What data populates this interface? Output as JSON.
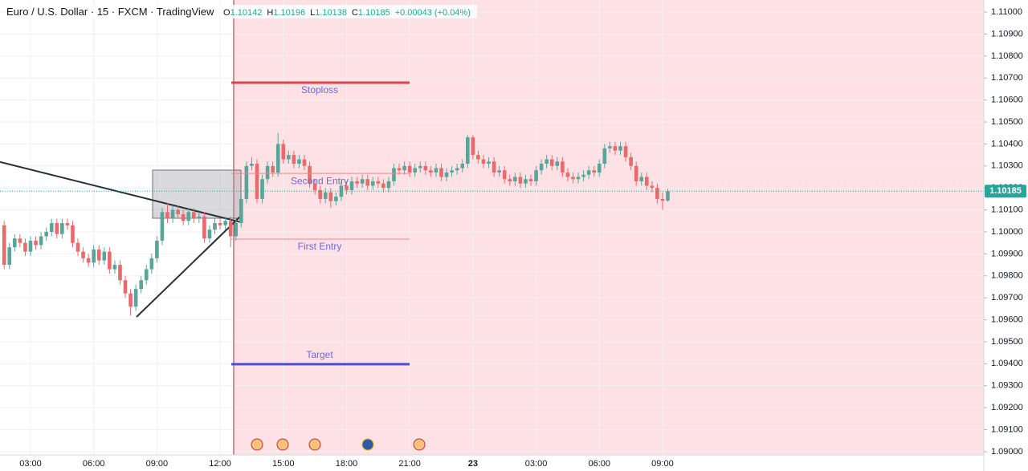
{
  "chart_data": {
    "type": "candlestick",
    "title": "Euro / U.S. Dollar · 15 · FXCM · TradingView",
    "ohlc_labels": [
      "O",
      "H",
      "L",
      "C"
    ],
    "change_label": "+0.00043 (+0.04%)",
    "up_color": "#5ba49a",
    "down_color": "#e86a6a",
    "categories": [
      null,
      null,
      null,
      null,
      null,
      "03:00",
      null,
      null,
      null,
      null,
      null,
      null,
      null,
      null,
      null,
      null,
      null,
      "06:00",
      null,
      null,
      null,
      null,
      null,
      null,
      null,
      null,
      null,
      null,
      null,
      "09:00",
      null,
      null,
      null,
      null,
      null,
      null,
      null,
      null,
      null,
      null,
      null,
      "12:00",
      null,
      null,
      null,
      null,
      null,
      null,
      null,
      null,
      null,
      null,
      null,
      "15:00",
      null,
      null,
      null,
      null,
      null,
      null,
      null,
      null,
      null,
      null,
      null,
      "18:00",
      null,
      null,
      null,
      null,
      null,
      null,
      null,
      null,
      null,
      null,
      null,
      "21:00",
      null,
      null,
      null,
      null,
      null,
      null,
      null,
      null,
      null,
      null,
      null,
      "23",
      null,
      null,
      null,
      null,
      null,
      null,
      null,
      null,
      null,
      null,
      null,
      "03:00",
      null,
      null,
      null,
      null,
      null,
      null,
      null,
      null,
      null,
      null,
      null,
      "06:00",
      null,
      null,
      null,
      null,
      null,
      null,
      null,
      null,
      null,
      null,
      null,
      "09:00",
      null
    ],
    "open": [
      1.1003,
      1.0985,
      1.0993,
      1.0997,
      1.0995,
      1.0991,
      1.0996,
      1.0994,
      1.0998,
      1.1,
      1.1004,
      1.0999,
      1.1004,
      1.1003,
      1.0995,
      1.0991,
      1.0988,
      1.0986,
      1.0992,
      1.0987,
      1.0991,
      1.0983,
      1.0985,
      1.0978,
      1.0972,
      1.0966,
      1.0974,
      1.0978,
      1.0983,
      1.0988,
      1.0996,
      1.1009,
      1.1006,
      1.101,
      1.1008,
      1.1005,
      1.1009,
      1.1006,
      1.1007,
      1.0997,
      1.1001,
      1.1004,
      1.1003,
      1.1005,
      1.0998,
      1.1004,
      1.1015,
      1.103,
      1.1031,
      1.1015,
      1.1024,
      1.103,
      1.1027,
      1.104,
      1.1033,
      1.1035,
      1.1031,
      1.1033,
      1.103,
      1.1022,
      1.1019,
      1.1015,
      1.1018,
      1.1014,
      1.1016,
      1.1021,
      1.1019,
      1.1023,
      1.1022,
      1.1024,
      1.1021,
      1.1023,
      1.1022,
      1.102,
      1.1023,
      1.1029,
      1.1028,
      1.103,
      1.1027,
      1.1029,
      1.103,
      1.1028,
      1.1027,
      1.1029,
      1.1025,
      1.1027,
      1.1028,
      1.1029,
      1.1031,
      1.1043,
      1.1035,
      1.1033,
      1.1031,
      1.1032,
      1.1027,
      1.1028,
      1.1024,
      1.1023,
      1.1025,
      1.1022,
      1.1024,
      1.1023,
      1.1028,
      1.1031,
      1.1033,
      1.103,
      1.1032,
      1.1027,
      1.1025,
      1.1024,
      1.1025,
      1.1026,
      1.1028,
      1.1027,
      1.1031,
      1.1038,
      1.1039,
      1.1037,
      1.1039,
      1.1034,
      1.103,
      1.1023,
      1.1025,
      1.1021,
      1.102,
      1.1015,
      1.10142
    ],
    "high": [
      1.1005,
      1.0995,
      1.0999,
      1.0999,
      1.0997,
      1.0998,
      1.0998,
      1.1,
      1.1002,
      1.1006,
      1.1006,
      1.1006,
      1.1006,
      1.1005,
      1.0997,
      1.0993,
      1.099,
      1.0994,
      1.0994,
      1.0993,
      1.0993,
      1.0987,
      1.0987,
      1.098,
      1.0974,
      1.0976,
      1.098,
      1.0985,
      1.099,
      1.0998,
      1.1011,
      1.1013,
      1.1012,
      1.1012,
      1.101,
      1.1011,
      1.1011,
      1.1009,
      1.1009,
      1.1003,
      1.1006,
      1.1006,
      1.1007,
      1.1007,
      1.1006,
      1.1017,
      1.1032,
      1.1034,
      1.1033,
      1.1026,
      1.1032,
      1.1032,
      1.1045,
      1.1042,
      1.1037,
      1.1037,
      1.1035,
      1.1035,
      1.1032,
      1.1024,
      1.1021,
      1.102,
      1.102,
      1.1018,
      1.1023,
      1.1023,
      1.1025,
      1.1025,
      1.1026,
      1.1026,
      1.1025,
      1.1025,
      1.1024,
      1.1025,
      1.1031,
      1.1031,
      1.1032,
      1.1032,
      1.1031,
      1.1032,
      1.1032,
      1.103,
      1.1031,
      1.1031,
      1.1029,
      1.103,
      1.1031,
      1.1033,
      1.1044,
      1.1044,
      1.1037,
      1.1035,
      1.1034,
      1.1034,
      1.103,
      1.103,
      1.1026,
      1.1027,
      1.1027,
      1.1026,
      1.1026,
      1.103,
      1.1033,
      1.1035,
      1.1035,
      1.1034,
      1.1034,
      1.1029,
      1.1027,
      1.1027,
      1.1028,
      1.103,
      1.103,
      1.1033,
      1.104,
      1.1041,
      1.1041,
      1.1041,
      1.1041,
      1.1036,
      1.1032,
      1.1027,
      1.1027,
      1.1023,
      1.1022,
      1.1018,
      1.10196
    ],
    "low": [
      1.0983,
      1.0983,
      1.0991,
      1.0993,
      1.0989,
      1.0989,
      1.0992,
      1.0992,
      1.0996,
      1.0998,
      1.0997,
      1.0997,
      1.1001,
      1.0993,
      1.0989,
      1.0986,
      1.0984,
      1.0984,
      1.0985,
      1.0985,
      1.0981,
      1.0981,
      1.0976,
      1.097,
      1.0962,
      1.0964,
      1.0972,
      1.0976,
      1.0981,
      1.0986,
      1.0994,
      1.1004,
      1.1004,
      1.1006,
      1.1003,
      1.1003,
      1.1004,
      1.1004,
      1.0995,
      1.0995,
      1.0999,
      1.1001,
      1.1001,
      1.0993,
      1.0996,
      1.1002,
      1.1013,
      1.1028,
      1.1013,
      1.1013,
      1.1022,
      1.1025,
      1.1025,
      1.1031,
      1.1031,
      1.1029,
      1.1029,
      1.1028,
      1.102,
      1.1017,
      1.1013,
      1.1013,
      1.1011,
      1.1012,
      1.1014,
      1.1017,
      1.1017,
      1.102,
      1.102,
      1.1019,
      1.1019,
      1.102,
      1.1018,
      1.1018,
      1.1021,
      1.1026,
      1.1026,
      1.1025,
      1.1025,
      1.1027,
      1.1026,
      1.1025,
      1.1025,
      1.1023,
      1.1023,
      1.1025,
      1.1026,
      1.1027,
      1.1029,
      1.1033,
      1.1031,
      1.1029,
      1.1029,
      1.1025,
      1.1025,
      1.1022,
      1.1021,
      1.1021,
      1.102,
      1.102,
      1.1021,
      1.1021,
      1.1026,
      1.1029,
      1.1028,
      1.1028,
      1.1025,
      1.1023,
      1.1022,
      1.1022,
      1.1023,
      1.1024,
      1.1025,
      1.1025,
      1.1029,
      1.1036,
      1.1035,
      1.1035,
      1.1032,
      1.1028,
      1.1021,
      1.1021,
      1.1019,
      1.1018,
      1.1013,
      1.101,
      1.10138
    ],
    "close": [
      1.0985,
      1.0993,
      1.0997,
      1.0995,
      1.0991,
      1.0996,
      1.0994,
      1.0998,
      1.1,
      1.1004,
      1.0999,
      1.1004,
      1.1003,
      1.0995,
      1.0991,
      1.0988,
      1.0986,
      1.0992,
      1.0987,
      1.0991,
      1.0983,
      1.0985,
      1.0978,
      1.0972,
      1.0966,
      1.0974,
      1.0978,
      1.0983,
      1.0988,
      1.0996,
      1.1009,
      1.1006,
      1.101,
      1.1008,
      1.1005,
      1.1009,
      1.1006,
      1.1007,
      1.0997,
      1.1001,
      1.1004,
      1.1003,
      1.1005,
      1.0998,
      1.1004,
      1.1015,
      1.103,
      1.1031,
      1.1015,
      1.1024,
      1.103,
      1.1027,
      1.104,
      1.1033,
      1.1035,
      1.1031,
      1.1033,
      1.103,
      1.1022,
      1.1019,
      1.1015,
      1.1018,
      1.1014,
      1.1016,
      1.1021,
      1.1019,
      1.1023,
      1.1022,
      1.1024,
      1.1021,
      1.1023,
      1.1022,
      1.102,
      1.1023,
      1.1029,
      1.1028,
      1.103,
      1.1027,
      1.1029,
      1.103,
      1.1028,
      1.1027,
      1.1029,
      1.1025,
      1.1027,
      1.1028,
      1.1029,
      1.1031,
      1.1043,
      1.1035,
      1.1033,
      1.1031,
      1.1032,
      1.1027,
      1.1028,
      1.1024,
      1.1023,
      1.1025,
      1.1022,
      1.1024,
      1.1023,
      1.1028,
      1.1031,
      1.1033,
      1.103,
      1.1032,
      1.1027,
      1.1025,
      1.1024,
      1.1025,
      1.1026,
      1.1028,
      1.1027,
      1.1031,
      1.1038,
      1.1039,
      1.1037,
      1.1039,
      1.1034,
      1.103,
      1.1023,
      1.1025,
      1.1021,
      1.102,
      1.1015,
      1.10142,
      1.10185
    ],
    "ylim": [
      1.08985,
      1.11055
    ],
    "yticks": [
      {
        "value": 1.09,
        "label": "1.09000"
      },
      {
        "value": 1.091,
        "label": "1.09100"
      },
      {
        "value": 1.092,
        "label": "1.09200"
      },
      {
        "value": 1.093,
        "label": "1.09300"
      },
      {
        "value": 1.094,
        "label": "1.09400"
      },
      {
        "value": 1.095,
        "label": "1.09500"
      },
      {
        "value": 1.096,
        "label": "1.09600"
      },
      {
        "value": 1.097,
        "label": "1.09700"
      },
      {
        "value": 1.098,
        "label": "1.09800"
      },
      {
        "value": 1.099,
        "label": "1.09900"
      },
      {
        "value": 1.1,
        "label": "1.10000"
      },
      {
        "value": 1.101,
        "label": "1.10100"
      },
      {
        "value": 1.102,
        "label": "1.10200"
      },
      {
        "value": 1.103,
        "label": "1.10300"
      },
      {
        "value": 1.104,
        "label": "1.10400"
      },
      {
        "value": 1.105,
        "label": "1.10500"
      },
      {
        "value": 1.106,
        "label": "1.10600"
      },
      {
        "value": 1.107,
        "label": "1.10700"
      },
      {
        "value": 1.108,
        "label": "1.10800"
      },
      {
        "value": 1.109,
        "label": "1.10900"
      },
      {
        "value": 1.11,
        "label": "1.11000"
      }
    ],
    "grid": true,
    "levels": [
      {
        "label": "Stoploss",
        "value": 1.10679,
        "color": "#d9454a",
        "width": 3
      },
      {
        "label": "Second Entry",
        "value": 1.10266,
        "color": "#ee8a8e",
        "width": 1
      },
      {
        "label": "First Entry",
        "value": 1.09967,
        "color": "#ee8a8e",
        "width": 1
      },
      {
        "label": "Target",
        "value": 1.09398,
        "color": "#4b4fc2",
        "width": 3
      }
    ],
    "level_label_color": "#6b6bd6",
    "zone": {
      "top": 1.10281,
      "bottom": 1.10062
    },
    "trendlines": [
      {
        "from": 1.10318,
        "to": 1.10044
      },
      {
        "from": 1.09613,
        "to": 1.10073
      }
    ]
  }
}
